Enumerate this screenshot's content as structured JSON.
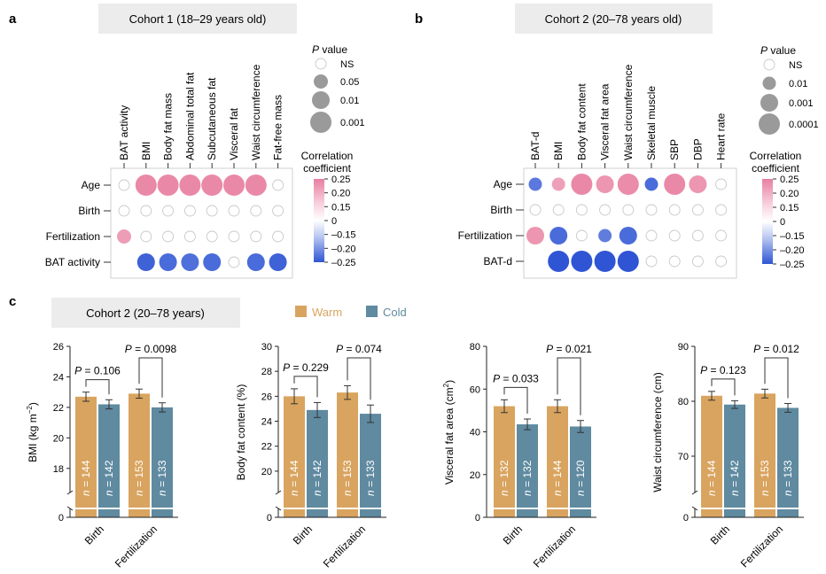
{
  "panels": {
    "a": {
      "letter": "a",
      "title": "Cohort 1 (18–29 years old)",
      "columns": [
        "BAT activity",
        "BMI",
        "Body fat mass",
        "Abdominal total fat",
        "Subcutaneous fat",
        "Visceral fat",
        "Waist circumference",
        "Fat-free mass"
      ],
      "rows": [
        "Age",
        "Birth",
        "Fertilization",
        "BAT activity"
      ],
      "pvalue_legend": {
        "title_italic": "P",
        "title_rest": " value",
        "labels": [
          "NS",
          "0.05",
          "0.01",
          "0.001"
        ]
      }
    },
    "b": {
      "letter": "b",
      "title": "Cohort 2 (20–78 years old)",
      "columns": [
        "BAT-d",
        "BMI",
        "Body fat content",
        "Visceral fat area",
        "Waist circumference",
        "Skeletal muscle",
        "SBP",
        "DBP",
        "Heart rate"
      ],
      "rows": [
        "Age",
        "Birth",
        "Fertilization",
        "BAT-d"
      ],
      "pvalue_legend": {
        "title_italic": "P",
        "title_rest": " value",
        "labels": [
          "NS",
          "0.01",
          "0.001",
          "0.0001"
        ]
      }
    },
    "c": {
      "letter": "c",
      "title": "Cohort 2 (20–78 years)",
      "legend": [
        {
          "name": "Warm",
          "color": "#d9a45f"
        },
        {
          "name": "Cold",
          "color": "#5f8aa0"
        }
      ],
      "n_prefix": "n = "
    }
  },
  "colorbar": {
    "title_line1": "Correlation",
    "title_line2": "coefficient",
    "ticks": [
      "0.25",
      "0.20",
      "0.15",
      "0",
      "–0.15",
      "–0.20",
      "–0.25"
    ],
    "colors": {
      "pos": "#e87fa0",
      "neg": "#2f55d4",
      "ns_stroke": "#c8c8c8"
    }
  },
  "chart_data": [
    {
      "type": "heatmap",
      "panel": "a",
      "encoding": "circle size = P value, fill color = correlation coefficient",
      "cells": [
        {
          "row": "Age",
          "col": "BAT activity",
          "p": "NS",
          "r": 0
        },
        {
          "row": "Age",
          "col": "BMI",
          "p": "0.001",
          "r": 0.22
        },
        {
          "row": "Age",
          "col": "Body fat mass",
          "p": "0.001",
          "r": 0.22
        },
        {
          "row": "Age",
          "col": "Abdominal total fat",
          "p": "0.001",
          "r": 0.22
        },
        {
          "row": "Age",
          "col": "Subcutaneous fat",
          "p": "0.001",
          "r": 0.22
        },
        {
          "row": "Age",
          "col": "Visceral fat",
          "p": "0.001",
          "r": 0.22
        },
        {
          "row": "Age",
          "col": "Waist circumference",
          "p": "0.001",
          "r": 0.22
        },
        {
          "row": "Age",
          "col": "Fat-free mass",
          "p": "NS",
          "r": 0
        },
        {
          "row": "Birth",
          "col": "BAT activity",
          "p": "NS",
          "r": 0
        },
        {
          "row": "Birth",
          "col": "BMI",
          "p": "NS",
          "r": 0
        },
        {
          "row": "Birth",
          "col": "Body fat mass",
          "p": "NS",
          "r": 0
        },
        {
          "row": "Birth",
          "col": "Abdominal total fat",
          "p": "NS",
          "r": 0
        },
        {
          "row": "Birth",
          "col": "Subcutaneous fat",
          "p": "NS",
          "r": 0
        },
        {
          "row": "Birth",
          "col": "Visceral fat",
          "p": "NS",
          "r": 0
        },
        {
          "row": "Birth",
          "col": "Waist circumference",
          "p": "NS",
          "r": 0
        },
        {
          "row": "Birth",
          "col": "Fat-free mass",
          "p": "NS",
          "r": 0
        },
        {
          "row": "Fertilization",
          "col": "BAT activity",
          "p": "0.05",
          "r": 0.16
        },
        {
          "row": "Fertilization",
          "col": "BMI",
          "p": "NS",
          "r": 0
        },
        {
          "row": "Fertilization",
          "col": "Body fat mass",
          "p": "NS",
          "r": 0
        },
        {
          "row": "Fertilization",
          "col": "Abdominal total fat",
          "p": "NS",
          "r": 0
        },
        {
          "row": "Fertilization",
          "col": "Subcutaneous fat",
          "p": "NS",
          "r": 0
        },
        {
          "row": "Fertilization",
          "col": "Visceral fat",
          "p": "NS",
          "r": 0
        },
        {
          "row": "Fertilization",
          "col": "Waist circumference",
          "p": "NS",
          "r": 0
        },
        {
          "row": "Fertilization",
          "col": "Fat-free mass",
          "p": "NS",
          "r": 0
        },
        {
          "row": "BAT activity",
          "col": "BAT activity",
          "p": "none",
          "r": 0
        },
        {
          "row": "BAT activity",
          "col": "BMI",
          "p": "0.01",
          "r": -0.22
        },
        {
          "row": "BAT activity",
          "col": "Body fat mass",
          "p": "0.01",
          "r": -0.2
        },
        {
          "row": "BAT activity",
          "col": "Abdominal total fat",
          "p": "0.01",
          "r": -0.19
        },
        {
          "row": "BAT activity",
          "col": "Subcutaneous fat",
          "p": "0.01",
          "r": -0.2
        },
        {
          "row": "BAT activity",
          "col": "Visceral fat",
          "p": "NS",
          "r": 0
        },
        {
          "row": "BAT activity",
          "col": "Waist circumference",
          "p": "0.01",
          "r": -0.2
        },
        {
          "row": "BAT activity",
          "col": "Fat-free mass",
          "p": "0.01",
          "r": -0.22
        }
      ]
    },
    {
      "type": "heatmap",
      "panel": "b",
      "encoding": "circle size = P value, fill color = correlation coefficient",
      "cells": [
        {
          "row": "Age",
          "col": "BAT-d",
          "p": "0.01",
          "r": -0.17
        },
        {
          "row": "Age",
          "col": "BMI",
          "p": "0.01",
          "r": 0.15
        },
        {
          "row": "Age",
          "col": "Body fat content",
          "p": "0.0001",
          "r": 0.22
        },
        {
          "row": "Age",
          "col": "Visceral fat area",
          "p": "0.001",
          "r": 0.18
        },
        {
          "row": "Age",
          "col": "Waist circumference",
          "p": "0.0001",
          "r": 0.21
        },
        {
          "row": "Age",
          "col": "Skeletal muscle",
          "p": "0.01",
          "r": -0.2
        },
        {
          "row": "Age",
          "col": "SBP",
          "p": "0.0001",
          "r": 0.22
        },
        {
          "row": "Age",
          "col": "DBP",
          "p": "0.001",
          "r": 0.18
        },
        {
          "row": "Age",
          "col": "Heart rate",
          "p": "NS",
          "r": 0
        },
        {
          "row": "Birth",
          "col": "BAT-d",
          "p": "NS",
          "r": 0
        },
        {
          "row": "Birth",
          "col": "BMI",
          "p": "NS",
          "r": 0
        },
        {
          "row": "Birth",
          "col": "Body fat content",
          "p": "NS",
          "r": 0
        },
        {
          "row": "Birth",
          "col": "Visceral fat area",
          "p": "NS",
          "r": 0
        },
        {
          "row": "Birth",
          "col": "Waist circumference",
          "p": "NS",
          "r": 0
        },
        {
          "row": "Birth",
          "col": "Skeletal muscle",
          "p": "NS",
          "r": 0
        },
        {
          "row": "Birth",
          "col": "SBP",
          "p": "NS",
          "r": 0
        },
        {
          "row": "Birth",
          "col": "DBP",
          "p": "NS",
          "r": 0
        },
        {
          "row": "Birth",
          "col": "Heart rate",
          "p": "NS",
          "r": 0
        },
        {
          "row": "Fertilization",
          "col": "BAT-d",
          "p": "0.001",
          "r": 0.18
        },
        {
          "row": "Fertilization",
          "col": "BMI",
          "p": "0.001",
          "r": -0.2
        },
        {
          "row": "Fertilization",
          "col": "Body fat content",
          "p": "NS",
          "r": 0
        },
        {
          "row": "Fertilization",
          "col": "Visceral fat area",
          "p": "0.01",
          "r": -0.16
        },
        {
          "row": "Fertilization",
          "col": "Waist circumference",
          "p": "0.001",
          "r": -0.2
        },
        {
          "row": "Fertilization",
          "col": "Skeletal muscle",
          "p": "NS",
          "r": 0
        },
        {
          "row": "Fertilization",
          "col": "SBP",
          "p": "NS",
          "r": 0
        },
        {
          "row": "Fertilization",
          "col": "DBP",
          "p": "NS",
          "r": 0
        },
        {
          "row": "Fertilization",
          "col": "Heart rate",
          "p": "NS",
          "r": 0
        },
        {
          "row": "BAT-d",
          "col": "BAT-d",
          "p": "none",
          "r": 0
        },
        {
          "row": "BAT-d",
          "col": "BMI",
          "p": "0.0001",
          "r": -0.25
        },
        {
          "row": "BAT-d",
          "col": "Body fat content",
          "p": "0.0001",
          "r": -0.25
        },
        {
          "row": "BAT-d",
          "col": "Visceral fat area",
          "p": "0.0001",
          "r": -0.25
        },
        {
          "row": "BAT-d",
          "col": "Waist circumference",
          "p": "0.0001",
          "r": -0.25
        },
        {
          "row": "BAT-d",
          "col": "Skeletal muscle",
          "p": "NS",
          "r": 0
        },
        {
          "row": "BAT-d",
          "col": "SBP",
          "p": "NS",
          "r": 0
        },
        {
          "row": "BAT-d",
          "col": "DBP",
          "p": "NS",
          "r": 0
        },
        {
          "row": "BAT-d",
          "col": "Heart rate",
          "p": "NS",
          "r": 0
        }
      ]
    },
    {
      "type": "bar",
      "panel": "c1",
      "categories": [
        "Birth",
        "Fertilization"
      ],
      "series": [
        {
          "name": "Warm",
          "values": [
            22.7,
            22.9
          ],
          "err": [
            0.3,
            0.3
          ],
          "n": [
            144,
            153
          ]
        },
        {
          "name": "Cold",
          "values": [
            22.2,
            22.0
          ],
          "err": [
            0.3,
            0.3
          ],
          "n": [
            142,
            133
          ]
        }
      ],
      "ylabel_main": "BMI (kg m",
      "ylabel_sup": "−2",
      "ylabel_end": ")",
      "yticks": [
        "0",
        "18",
        "20",
        "22",
        "24",
        "26"
      ],
      "ylim": [
        17,
        26
      ],
      "axis_break": true,
      "pvalues": [
        "0.106",
        "0.0098"
      ]
    },
    {
      "type": "bar",
      "panel": "c2",
      "categories": [
        "Birth",
        "Fertilization"
      ],
      "series": [
        {
          "name": "Warm",
          "values": [
            26.0,
            26.3
          ],
          "err": [
            0.6,
            0.55
          ],
          "n": [
            144,
            153
          ]
        },
        {
          "name": "Cold",
          "values": [
            24.9,
            24.6
          ],
          "err": [
            0.6,
            0.7
          ],
          "n": [
            142,
            133
          ]
        }
      ],
      "ylabel_main": "Body fat content (%)",
      "ylabel_sup": "",
      "ylabel_end": "",
      "yticks": [
        "0",
        "20",
        "22",
        "24",
        "26",
        "28",
        "30"
      ],
      "ylim": [
        19,
        30
      ],
      "axis_break": true,
      "pvalues": [
        "0.229",
        "0.074"
      ]
    },
    {
      "type": "bar",
      "panel": "c3",
      "categories": [
        "Birth",
        "Fertilization"
      ],
      "series": [
        {
          "name": "Warm",
          "values": [
            52.0,
            52.0
          ],
          "err": [
            3.0,
            3.0
          ],
          "n": [
            132,
            144
          ]
        },
        {
          "name": "Cold",
          "values": [
            43.5,
            42.5
          ],
          "err": [
            2.5,
            2.8
          ],
          "n": [
            132,
            120
          ]
        }
      ],
      "ylabel_main": "Visceral fat area (cm",
      "ylabel_sup": "2",
      "ylabel_end": ")",
      "yticks": [
        "0",
        "20",
        "40",
        "60",
        "80"
      ],
      "ylim": [
        0,
        80
      ],
      "axis_break": false,
      "pvalues": [
        "0.033",
        "0.021"
      ]
    },
    {
      "type": "bar",
      "panel": "c4",
      "categories": [
        "Birth",
        "Fertilization"
      ],
      "series": [
        {
          "name": "Warm",
          "values": [
            81.0,
            81.4
          ],
          "err": [
            0.8,
            0.8
          ],
          "n": [
            144,
            153
          ]
        },
        {
          "name": "Cold",
          "values": [
            79.4,
            78.8
          ],
          "err": [
            0.7,
            0.8
          ],
          "n": [
            142,
            133
          ]
        }
      ],
      "ylabel_main": "Waist circumference (cm)",
      "ylabel_sup": "",
      "ylabel_end": "",
      "yticks": [
        "0",
        "70",
        "80",
        "90"
      ],
      "ylim": [
        65,
        90
      ],
      "axis_break": true,
      "pvalues": [
        "0.123",
        "0.012"
      ]
    }
  ]
}
